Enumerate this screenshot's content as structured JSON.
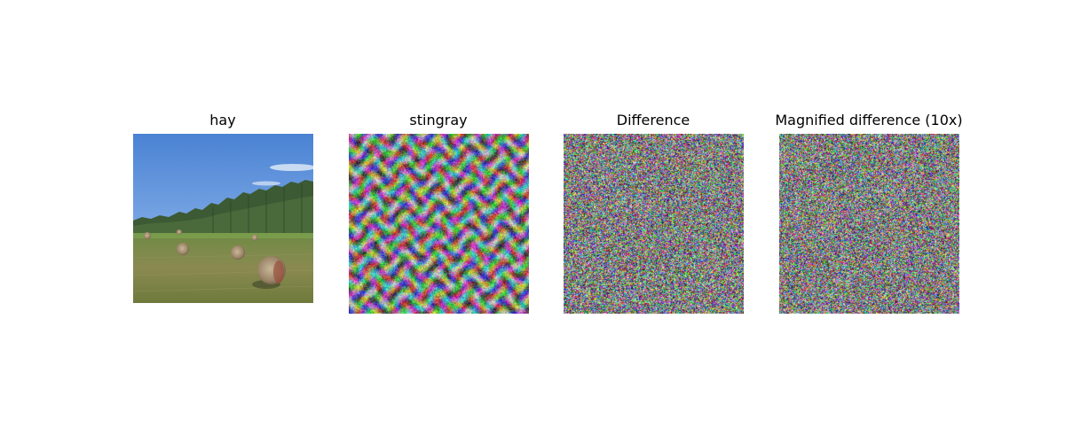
{
  "panels": [
    {
      "title": "hay"
    },
    {
      "title": "stingray"
    },
    {
      "title": "Difference"
    },
    {
      "title": "Magnified difference (10x)"
    }
  ],
  "colors": {
    "sky_top": "#4f86d6",
    "sky_bottom": "#9fc3ee",
    "tree_dark": "#2f4a2a",
    "field": "#7c8a4a",
    "bale": "#9a8a72"
  }
}
